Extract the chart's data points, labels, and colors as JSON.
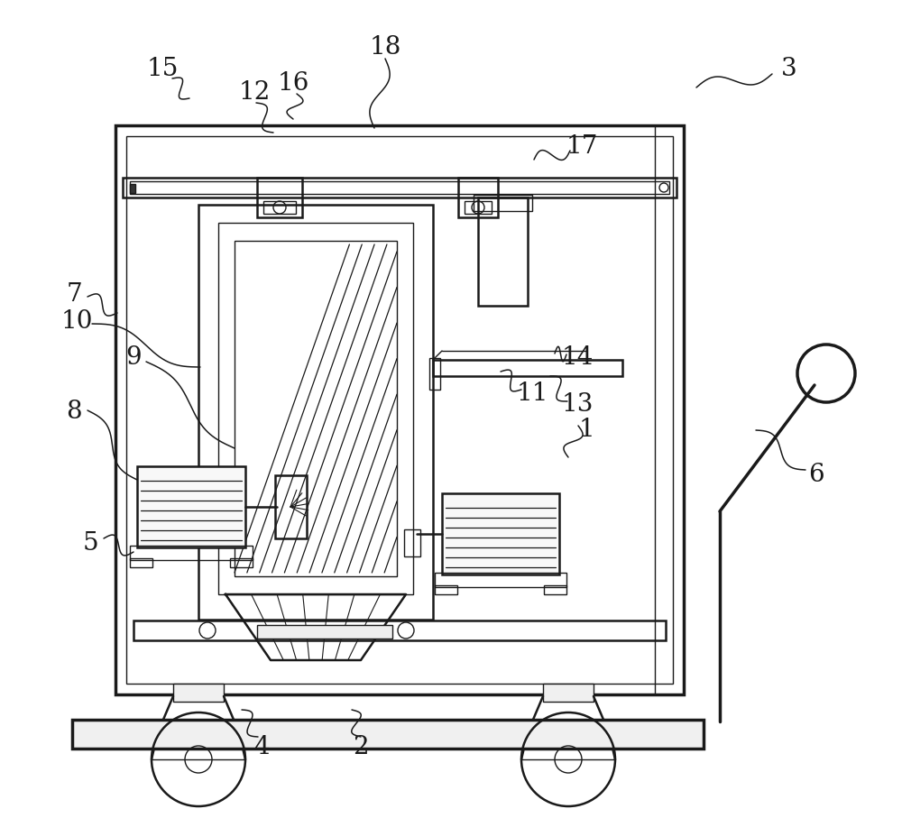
{
  "bg_color": "#ffffff",
  "line_color": "#1a1a1a",
  "fig_width": 10.0,
  "fig_height": 9.07,
  "lw": 1.8,
  "lw_thin": 1.0,
  "lw_thick": 2.5
}
